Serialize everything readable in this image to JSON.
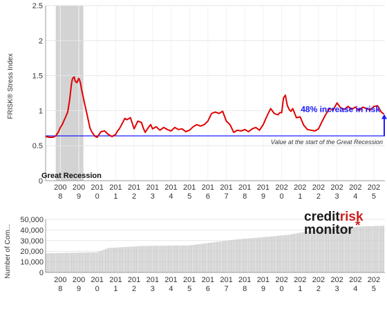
{
  "chart_data": [
    {
      "type": "line",
      "ylabel": "FRISK® Stress Index",
      "ylim": [
        0,
        2.5
      ],
      "yticks": [
        0,
        0.5,
        1,
        1.5,
        2,
        2.5
      ],
      "xlim": [
        2007.2,
        2025.6
      ],
      "x_tick_labels": [
        {
          "x": 2008,
          "l1": "200",
          "l2": "8"
        },
        {
          "x": 2009,
          "l1": "200",
          "l2": "9"
        },
        {
          "x": 2010,
          "l1": "201",
          "l2": "0"
        },
        {
          "x": 2011,
          "l1": "201",
          "l2": "1"
        },
        {
          "x": 2012,
          "l1": "201",
          "l2": "2"
        },
        {
          "x": 2013,
          "l1": "201",
          "l2": "3"
        },
        {
          "x": 2014,
          "l1": "201",
          "l2": "4"
        },
        {
          "x": 2015,
          "l1": "201",
          "l2": "5"
        },
        {
          "x": 2016,
          "l1": "201",
          "l2": "6"
        },
        {
          "x": 2017,
          "l1": "201",
          "l2": "7"
        },
        {
          "x": 2018,
          "l1": "201",
          "l2": "8"
        },
        {
          "x": 2019,
          "l1": "201",
          "l2": "9"
        },
        {
          "x": 2020,
          "l1": "202",
          "l2": "0"
        },
        {
          "x": 2021,
          "l1": "202",
          "l2": "1"
        },
        {
          "x": 2022,
          "l1": "202",
          "l2": "2"
        },
        {
          "x": 2023,
          "l1": "202",
          "l2": "3"
        },
        {
          "x": 2024,
          "l1": "202",
          "l2": "4"
        },
        {
          "x": 2025,
          "l1": "202",
          "l2": "5"
        }
      ],
      "shaded_region": {
        "x_start": 2007.75,
        "x_end": 2009.25,
        "label": "Great Recession"
      },
      "reference_line": {
        "y": 0.64,
        "label": "Value at the start of the Great Recession"
      },
      "annotation": {
        "text": "48% increase in risk",
        "from": 0.64,
        "to": 0.95
      },
      "series": [
        {
          "color": "#e00000",
          "x": [
            2007.2,
            2007.4,
            2007.6,
            2007.75,
            2007.9,
            2008.0,
            2008.1,
            2008.2,
            2008.3,
            2008.4,
            2008.5,
            2008.6,
            2008.65,
            2008.7,
            2008.75,
            2008.8,
            2008.9,
            2009.0,
            2009.05,
            2009.1,
            2009.15,
            2009.2,
            2009.3,
            2009.4,
            2009.5,
            2009.6,
            2009.7,
            2009.8,
            2009.9,
            2010.0,
            2010.1,
            2010.2,
            2010.4,
            2010.6,
            2010.8,
            2011.0,
            2011.1,
            2011.2,
            2011.4,
            2011.5,
            2011.6,
            2011.8,
            2012.0,
            2012.2,
            2012.4,
            2012.5,
            2012.6,
            2012.8,
            2012.9,
            2013.0,
            2013.2,
            2013.4,
            2013.6,
            2013.8,
            2014.0,
            2014.2,
            2014.4,
            2014.6,
            2014.8,
            2015.0,
            2015.2,
            2015.4,
            2015.6,
            2015.8,
            2016.0,
            2016.2,
            2016.4,
            2016.5,
            2016.6,
            2016.8,
            2017.0,
            2017.2,
            2017.4,
            2017.6,
            2017.8,
            2018.0,
            2018.2,
            2018.4,
            2018.6,
            2018.8,
            2019.0,
            2019.1,
            2019.2,
            2019.4,
            2019.6,
            2019.8,
            2019.9,
            2020.0,
            2020.1,
            2020.2,
            2020.3,
            2020.4,
            2020.5,
            2020.6,
            2020.8,
            2021.0,
            2021.2,
            2021.4,
            2021.6,
            2021.8,
            2022.0,
            2022.2,
            2022.4,
            2022.6,
            2022.8,
            2023.0,
            2023.2,
            2023.4,
            2023.6,
            2023.8,
            2024.0,
            2024.2,
            2024.4,
            2024.6,
            2024.8,
            2025.0,
            2025.2,
            2025.4,
            2025.55
          ],
          "y": [
            0.63,
            0.62,
            0.62,
            0.64,
            0.7,
            0.76,
            0.8,
            0.86,
            0.92,
            0.98,
            1.15,
            1.38,
            1.45,
            1.47,
            1.48,
            1.42,
            1.4,
            1.46,
            1.43,
            1.38,
            1.3,
            1.24,
            1.12,
            1.0,
            0.88,
            0.76,
            0.7,
            0.66,
            0.63,
            0.62,
            0.66,
            0.7,
            0.71,
            0.66,
            0.63,
            0.66,
            0.71,
            0.74,
            0.84,
            0.89,
            0.87,
            0.9,
            0.74,
            0.85,
            0.83,
            0.75,
            0.69,
            0.77,
            0.8,
            0.74,
            0.77,
            0.72,
            0.76,
            0.73,
            0.71,
            0.76,
            0.73,
            0.74,
            0.7,
            0.72,
            0.77,
            0.8,
            0.78,
            0.8,
            0.85,
            0.96,
            0.98,
            0.97,
            0.96,
            0.99,
            0.85,
            0.8,
            0.69,
            0.72,
            0.71,
            0.73,
            0.7,
            0.74,
            0.76,
            0.72,
            0.8,
            0.86,
            0.92,
            1.03,
            0.96,
            0.94,
            0.97,
            0.97,
            1.18,
            1.22,
            1.08,
            1.02,
            0.99,
            1.03,
            0.9,
            0.91,
            0.79,
            0.73,
            0.72,
            0.71,
            0.74,
            0.85,
            0.95,
            1.03,
            1.01,
            1.11,
            1.04,
            1.02,
            1.06,
            1.02,
            1.05,
            1.0,
            1.05,
            1.03,
            1.01,
            1.06,
            1.07,
            0.98,
            0.95
          ]
        }
      ]
    },
    {
      "type": "bar",
      "ylabel": "Number of Com...",
      "ylim": [
        0,
        50000
      ],
      "yticks": [
        0,
        10000,
        20000,
        30000,
        40000,
        50000
      ],
      "ytick_labels": [
        "0",
        "10,000",
        "20,000",
        "30,000",
        "40,000",
        "50,000"
      ],
      "anchors_x": [
        2007.2,
        2010.0,
        2010.6,
        2012.5,
        2015.0,
        2017.5,
        2019.5,
        2020.4,
        2021.5,
        2023.0,
        2024.5,
        2025.55
      ],
      "anchors_y": [
        18000,
        19000,
        23000,
        25000,
        25500,
        31000,
        34000,
        35500,
        39000,
        41500,
        43500,
        44000
      ]
    }
  ],
  "logo": {
    "part1": "credit",
    "part2": "risk",
    "part3": "monitor",
    "mark": "*"
  }
}
